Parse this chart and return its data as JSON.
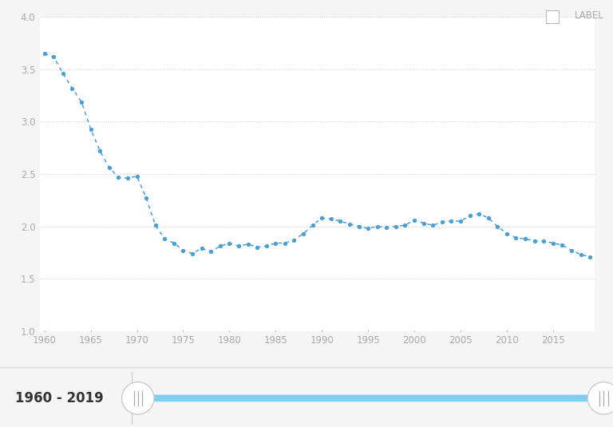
{
  "years": [
    1960,
    1961,
    1962,
    1963,
    1964,
    1965,
    1966,
    1967,
    1968,
    1969,
    1970,
    1971,
    1972,
    1973,
    1974,
    1975,
    1976,
    1977,
    1978,
    1979,
    1980,
    1981,
    1982,
    1983,
    1984,
    1985,
    1986,
    1987,
    1988,
    1989,
    1990,
    1991,
    1992,
    1993,
    1994,
    1995,
    1996,
    1997,
    1998,
    1999,
    2000,
    2001,
    2002,
    2003,
    2004,
    2005,
    2006,
    2007,
    2008,
    2009,
    2010,
    2011,
    2012,
    2013,
    2014,
    2015,
    2016,
    2017,
    2018,
    2019
  ],
  "values": [
    3.65,
    3.62,
    3.46,
    3.32,
    3.19,
    2.93,
    2.72,
    2.56,
    2.47,
    2.46,
    2.48,
    2.27,
    2.01,
    1.88,
    1.84,
    1.77,
    1.74,
    1.79,
    1.76,
    1.81,
    1.84,
    1.81,
    1.83,
    1.8,
    1.81,
    1.84,
    1.84,
    1.87,
    1.93,
    2.01,
    2.08,
    2.07,
    2.05,
    2.02,
    2.0,
    1.98,
    2.0,
    1.99,
    2.0,
    2.01,
    2.06,
    2.03,
    2.01,
    2.04,
    2.05,
    2.05,
    2.1,
    2.12,
    2.08,
    2.0,
    1.93,
    1.89,
    1.88,
    1.86,
    1.86,
    1.84,
    1.82,
    1.77,
    1.73,
    1.71
  ],
  "line_color": "#4a9fd4",
  "marker_color": "#4a9fd4",
  "background_color": "#f5f5f5",
  "plot_bg_color": "#ffffff",
  "grid_color": "#cccccc",
  "ylim": [
    1.0,
    4.0
  ],
  "xlim": [
    1959.5,
    2019.5
  ],
  "yticks": [
    1.0,
    1.5,
    2.0,
    2.5,
    3.0,
    3.5,
    4.0
  ],
  "xticks": [
    1960,
    1965,
    1970,
    1975,
    1980,
    1985,
    1990,
    1995,
    2000,
    2005,
    2010,
    2015
  ],
  "footer_bg": "#e9e9e9",
  "footer_text": "1960 - 2019",
  "slider_color": "#7ecef0",
  "label_text": "LABEL",
  "tick_color": "#aaaaaa",
  "label_color": "#aaaaaa"
}
